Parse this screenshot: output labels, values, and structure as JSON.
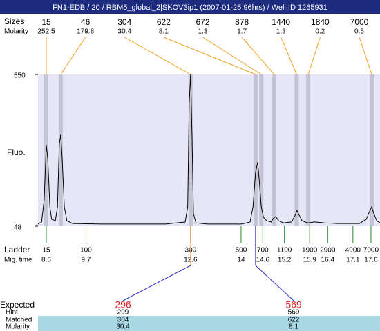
{
  "chart_data": {
    "type": "line",
    "title": "FN1-EDB / 20 / RBM5_global_2|SKOV3ip1 (2007-01-25 96hrs) / Well ID 1265931",
    "ylabel": "Fluo.",
    "xlim": [
      8.37,
      17.85
    ],
    "ylim": [
      48,
      550
    ],
    "yticks": [
      48,
      550
    ],
    "color": "#000000",
    "x": [
      8.37,
      8.47,
      8.54,
      8.6,
      8.64,
      8.7,
      8.75,
      8.85,
      8.91,
      8.96,
      9.0,
      9.04,
      9.1,
      9.17,
      9.33,
      10.19,
      11.91,
      12.45,
      12.52,
      12.56,
      12.6,
      12.64,
      12.68,
      12.75,
      13.06,
      14.02,
      14.25,
      14.33,
      14.4,
      14.46,
      14.5,
      14.56,
      14.62,
      14.71,
      14.83,
      14.9,
      14.96,
      15.04,
      15.17,
      15.4,
      15.5,
      15.55,
      15.61,
      15.69,
      15.84,
      16.03,
      16.32,
      16.7,
      17.28,
      17.47,
      17.57,
      17.62,
      17.68,
      17.76,
      17.85
    ],
    "values": [
      55,
      62,
      135,
      317,
      272,
      112,
      71,
      66,
      112,
      317,
      351,
      272,
      112,
      66,
      57,
      55,
      55,
      62,
      112,
      454,
      550,
      340,
      89,
      59,
      55,
      55,
      62,
      112,
      226,
      260,
      203,
      112,
      78,
      66,
      62,
      75,
      80,
      66,
      59,
      62,
      85,
      100,
      85,
      66,
      59,
      62,
      59,
      57,
      57,
      71,
      100,
      112,
      89,
      66,
      59
    ],
    "peaks": {
      "label_sizes": "Sizes",
      "label_molarity": "Molarity",
      "sizes": [
        15,
        46,
        304,
        622,
        672,
        878,
        1440,
        1840,
        7000
      ],
      "molarity": [
        252.5,
        179.8,
        30.4,
        8.1,
        1.3,
        1.7,
        1.3,
        0.2,
        0.5
      ],
      "times": [
        8.6,
        9.0,
        12.6,
        14.4,
        14.56,
        14.92,
        15.54,
        15.86,
        17.62
      ]
    },
    "ladder": {
      "label": "Ladder",
      "label_time": "Mig. time",
      "sizes": [
        15,
        100,
        300,
        500,
        700,
        1100,
        1900,
        2900,
        4900,
        7000
      ],
      "times": [
        8.6,
        9.7,
        12.6,
        14,
        14.6,
        15.2,
        15.9,
        16.4,
        17.1,
        17.6
      ]
    },
    "expected": {
      "labels": [
        "Expected",
        "Hint",
        "Matched",
        "Molarity"
      ],
      "expected": [
        296,
        569
      ],
      "hint": [
        299,
        569
      ],
      "matched": [
        304,
        622
      ],
      "molarity": [
        30.4,
        8.1
      ]
    }
  }
}
